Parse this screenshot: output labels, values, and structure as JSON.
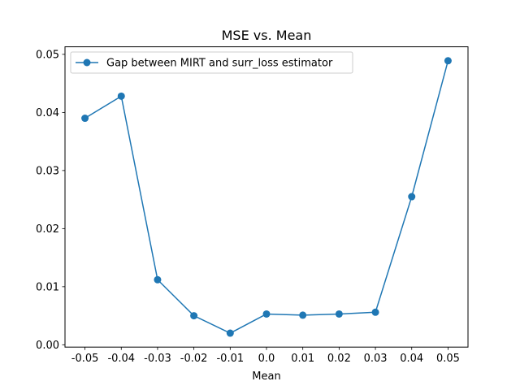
{
  "chart_data": {
    "type": "line",
    "title": "MSE vs. Mean",
    "xlabel": "Mean",
    "ylabel": "",
    "x": [
      -0.05,
      -0.04,
      -0.03,
      -0.02,
      -0.01,
      0.0,
      0.01,
      0.02,
      0.03,
      0.04,
      0.05
    ],
    "x_tick_labels": [
      "-0.05",
      "-0.04",
      "-0.03",
      "-0.02",
      "-0.01",
      "0.0",
      "0.01",
      "0.02",
      "0.03",
      "0.04",
      "0.05"
    ],
    "series": [
      {
        "name": "Gap between MIRT and surr_loss estimator",
        "color": "#1f77b4",
        "marker": "circle",
        "values": [
          0.039,
          0.0428,
          0.0112,
          0.005,
          0.002,
          0.0053,
          0.0051,
          0.0053,
          0.0056,
          0.0255,
          0.0489
        ]
      }
    ],
    "xlim": [
      -0.0555,
      0.0555
    ],
    "ylim": [
      -0.0004,
      0.0513
    ],
    "y_ticks": [
      0.0,
      0.01,
      0.02,
      0.03,
      0.04,
      0.05
    ],
    "y_tick_labels": [
      "0.00",
      "0.01",
      "0.02",
      "0.03",
      "0.04",
      "0.05"
    ],
    "grid": false,
    "legend_position": "top-left"
  }
}
